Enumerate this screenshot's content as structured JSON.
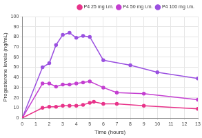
{
  "chart_data": {
    "type": "line",
    "x_label": "Time (hours)",
    "y_label": "Progesterone levels (ng/mL)",
    "xlim": [
      0,
      13
    ],
    "xticks": [
      0,
      1,
      2,
      3,
      4,
      5,
      6,
      7,
      8,
      9,
      10,
      11,
      12,
      13
    ],
    "ylim": [
      0,
      100
    ],
    "yticks": [
      0,
      10,
      20,
      30,
      40,
      50,
      60,
      70,
      80,
      90,
      100
    ],
    "grid": true,
    "legend": "upper right",
    "marker": "circle",
    "series": [
      {
        "name": "P4 25 mg i.m.",
        "color": "#e8338a",
        "x": [
          0,
          1.5,
          2,
          2.5,
          3,
          3.5,
          4,
          4.5,
          5,
          5.3,
          6,
          7,
          9,
          13
        ],
        "values": [
          0,
          10,
          11,
          11,
          12,
          12,
          12,
          13,
          15,
          16,
          14,
          14,
          12,
          9
        ]
      },
      {
        "name": "P4 50 mg i.m.",
        "color": "#c43fd1",
        "x": [
          0,
          1.5,
          2,
          2.5,
          3,
          3.5,
          4,
          4.5,
          5,
          6,
          7,
          9,
          13
        ],
        "values": [
          0,
          34,
          34,
          31,
          33,
          33,
          34,
          35,
          36,
          30,
          25,
          24,
          18
        ]
      },
      {
        "name": "P4 100 mg i.m.",
        "color": "#9a50e0",
        "x": [
          0,
          1.5,
          2,
          2.5,
          3,
          3.5,
          4,
          4.5,
          5,
          6,
          8,
          10,
          13
        ],
        "values": [
          0,
          50,
          54,
          72,
          82,
          84,
          79,
          81,
          80,
          57,
          52,
          45,
          39
        ]
      }
    ]
  }
}
